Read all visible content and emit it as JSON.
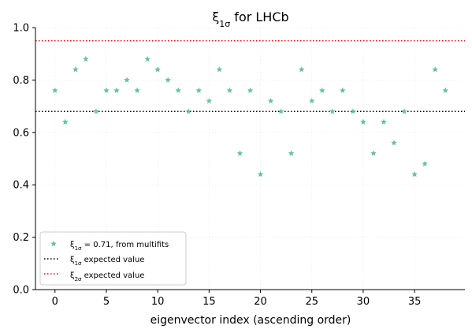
{
  "chart_data": {
    "type": "scatter",
    "title": "ξ1σ for LHCb",
    "title_main": "ξ",
    "title_sub": "1σ",
    "title_rest": " for LHCb",
    "xlabel": "eigenvector index (ascending order)",
    "ylabel": "",
    "xlim": [
      -1.9,
      39.9
    ],
    "ylim": [
      0.0,
      1.0
    ],
    "xticks": [
      0,
      5,
      10,
      15,
      20,
      25,
      30,
      35
    ],
    "yticks": [
      0.0,
      0.2,
      0.4,
      0.6,
      0.8,
      1.0
    ],
    "xtick_labels": [
      "0",
      "5",
      "10",
      "15",
      "20",
      "25",
      "30",
      "35"
    ],
    "ytick_labels": [
      "0.0",
      "0.2",
      "0.4",
      "0.6",
      "0.8",
      "1.0"
    ],
    "grid": true,
    "legend_position": "lower-left",
    "series": [
      {
        "name": "ξ1σ = 0.71, from multifits",
        "legend_main": "ξ",
        "legend_sub": "1σ",
        "legend_rest": " = 0.71, from multifits",
        "marker": "star",
        "color": "#66c2a5",
        "x": [
          0,
          1,
          2,
          3,
          4,
          5,
          6,
          7,
          8,
          9,
          10,
          11,
          12,
          13,
          14,
          15,
          16,
          17,
          18,
          19,
          20,
          21,
          22,
          23,
          24,
          25,
          26,
          27,
          28,
          29,
          30,
          31,
          32,
          33,
          34,
          35,
          36,
          37,
          38
        ],
        "y": [
          0.76,
          0.64,
          0.84,
          0.88,
          0.68,
          0.76,
          0.76,
          0.8,
          0.76,
          0.88,
          0.84,
          0.8,
          0.76,
          0.68,
          0.76,
          0.72,
          0.84,
          0.76,
          0.52,
          0.76,
          0.44,
          0.72,
          0.68,
          0.52,
          0.84,
          0.72,
          0.76,
          0.68,
          0.76,
          0.68,
          0.64,
          0.52,
          0.64,
          0.56,
          0.68,
          0.44,
          0.48,
          0.84,
          0.76
        ]
      }
    ],
    "reference_lines": [
      {
        "name": "ξ1σ expected value",
        "legend_main": "ξ",
        "legend_sub": "1σ",
        "legend_rest": " expected value",
        "y": 0.68,
        "color": "#000000",
        "style": "dotted"
      },
      {
        "name": "ξ2σ expected value",
        "legend_main": "ξ",
        "legend_sub": "2σ",
        "legend_rest": " expected value",
        "y": 0.95,
        "color": "#ff0000",
        "style": "dotted"
      }
    ]
  }
}
